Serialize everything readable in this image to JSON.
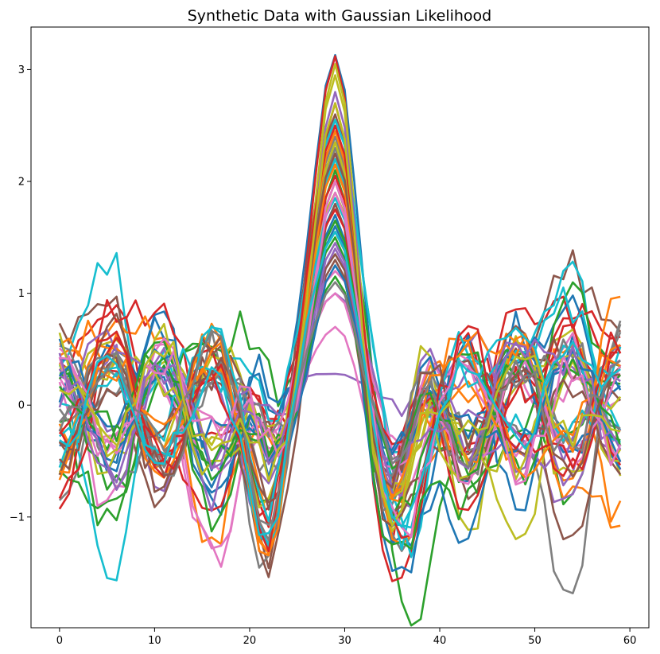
{
  "chart_data": {
    "type": "line",
    "title": "Synthetic Data with Gaussian Likelihood",
    "xlabel": "",
    "ylabel": "",
    "xlim": [
      -3,
      62
    ],
    "ylim": [
      -1.99,
      3.38
    ],
    "x_ticks": [
      0,
      10,
      20,
      30,
      40,
      50,
      60
    ],
    "x_tick_labels": [
      "0",
      "10",
      "20",
      "30",
      "40",
      "50",
      "60"
    ],
    "y_ticks": [
      -1,
      0,
      1,
      2,
      3
    ],
    "y_tick_labels": [
      "−1",
      "0",
      "1",
      "2",
      "3"
    ],
    "grid": false,
    "legend": "none",
    "n_points": 60,
    "x_values": "0..59",
    "series_count": 50,
    "palette": [
      "#1f77b4",
      "#ff7f0e",
      "#2ca02c",
      "#d62728",
      "#9467bd",
      "#8c564b",
      "#e377c2",
      "#7f7f7f",
      "#bcbd22",
      "#17becf"
    ],
    "signal": {
      "shape": "gaussian bump",
      "center_x": 29,
      "peak_amplitude_range": [
        0.3,
        3.1
      ],
      "baseline_mean": 0
    },
    "series": [
      {
        "peak": 3.13,
        "baseline": [
          0.2,
          -0.5,
          0.8,
          -0.9,
          0.4,
          0.6,
          -0.3,
          0.5,
          -0.6,
          0.7,
          -0.4,
          0.2
        ]
      },
      {
        "peak": 2.25,
        "baseline": [
          0.5,
          0.3,
          -0.6,
          0.7,
          -0.2,
          0.6,
          -0.9,
          0.4,
          0.3,
          -0.5,
          0.6,
          -1.0
        ]
      },
      {
        "peak": 2.2,
        "baseline": [
          -0.2,
          -1.1,
          0.3,
          0.5,
          1.15,
          -0.4,
          0.1,
          -1.5,
          -0.2,
          0.4,
          -0.8,
          0.3
        ]
      },
      {
        "peak": 3.12,
        "baseline": [
          0.4,
          0.8,
          0.9,
          -0.3,
          0.7,
          0.2,
          -1.7,
          0.6,
          -0.4,
          0.9,
          0.8,
          0.5
        ]
      },
      {
        "peak": 0.28,
        "baseline": [
          -0.4,
          0.4,
          -0.6,
          0.2,
          -0.3,
          0.5,
          0.2,
          0.5,
          0.2,
          -0.5,
          0.3,
          -0.6
        ]
      },
      {
        "peak": 2.6,
        "baseline": [
          0.6,
          1.0,
          -0.8,
          0.4,
          -0.6,
          0.9,
          -1.2,
          0.5,
          -0.7,
          0.3,
          1.25,
          0.6
        ]
      },
      {
        "peak": 0.7,
        "baseline": [
          0.1,
          -0.4,
          0.2,
          -1.4,
          0.3,
          0.2,
          -0.5,
          0.4,
          -0.8,
          0.3,
          -0.4,
          0.2
        ]
      },
      {
        "peak": 2.4,
        "baseline": [
          -0.8,
          0.3,
          -0.5,
          0.5,
          -0.7,
          0.2,
          -0.9,
          -0.6,
          0.4,
          -0.3,
          -1.6,
          0.6
        ]
      },
      {
        "peak": 3.05,
        "baseline": [
          0.2,
          0.6,
          -0.3,
          0.4,
          0.5,
          -0.6,
          -1.2,
          1.05,
          -1.1,
          0.3,
          0.6,
          -0.5
        ]
      },
      {
        "peak": 2.55,
        "baseline": [
          0.3,
          1.25,
          -0.6,
          0.2,
          0.8,
          0.5,
          0.3,
          0.4,
          -0.5,
          0.5,
          1.2,
          -0.2
        ]
      },
      {
        "peak": 1.8,
        "baseline": [
          -0.3,
          0.5,
          0.1,
          -0.7,
          1.0,
          -0.2,
          -1.3,
          -0.5,
          -1.2,
          0.4,
          0.9,
          -0.4
        ]
      },
      {
        "peak": 2.0,
        "baseline": [
          0.5,
          0.7,
          0.6,
          -1.3,
          0.5,
          -0.4,
          -1.0,
          -0.6,
          0.2,
          0.7,
          -0.8,
          -1.0
        ]
      },
      {
        "peak": 1.5,
        "baseline": [
          -0.6,
          -1.0,
          0.2,
          0.5,
          -0.3,
          0.3,
          -1.1,
          0.2,
          -0.7,
          -0.2,
          1.0,
          0.3
        ]
      },
      {
        "peak": 2.7,
        "baseline": [
          -0.8,
          0.9,
          -0.4,
          -0.9,
          0.8,
          -0.5,
          -1.7,
          -0.4,
          0.6,
          -0.4,
          0.9,
          0.5
        ]
      },
      {
        "peak": 1.0,
        "baseline": [
          0.2,
          -0.3,
          0.3,
          0.2,
          -0.6,
          0.4,
          0.5,
          -0.3,
          0.7,
          -0.4,
          -0.8,
          0.4
        ]
      },
      {
        "peak": 1.3,
        "baseline": [
          -0.4,
          0.3,
          -0.8,
          0.3,
          0.5,
          -0.5,
          -0.9,
          0.4,
          -0.6,
          0.5,
          -1.3,
          0.5
        ]
      },
      {
        "peak": 1.2,
        "baseline": [
          0.1,
          -0.9,
          0.5,
          -1.4,
          0.2,
          0.3,
          0.3,
          -0.2,
          0.5,
          -0.6,
          0.2,
          -0.4
        ]
      },
      {
        "peak": 2.0,
        "baseline": [
          0.7,
          -0.6,
          -0.4,
          0.3,
          0.2,
          -0.7,
          -1.2,
          0.4,
          -0.5,
          0.3,
          -0.4,
          0.6
        ]
      },
      {
        "peak": 2.95,
        "baseline": [
          -0.5,
          0.4,
          0.5,
          -0.2,
          0.6,
          -0.3,
          -1.0,
          0.2,
          -0.3,
          -1.15,
          0.3,
          -0.5
        ]
      },
      {
        "peak": 2.55,
        "baseline": [
          0.1,
          -1.5,
          0.4,
          0.3,
          -0.5,
          0.5,
          0.5,
          -0.6,
          0.3,
          0.4,
          0.9,
          -0.3
        ]
      },
      {
        "peak": 1.7,
        "baseline": [
          0.3,
          -0.5,
          0.7,
          -0.9,
          0.9,
          -0.3,
          -1.4,
          -0.8,
          0.5,
          -0.9,
          0.5,
          -0.6
        ]
      },
      {
        "peak": 2.15,
        "baseline": [
          -0.3,
          0.6,
          -0.7,
          0.6,
          -0.5,
          0.4,
          -0.8,
          0.3,
          0.5,
          0.6,
          -0.7,
          1.0
        ]
      },
      {
        "peak": 2.1,
        "baseline": [
          0.4,
          -0.8,
          0.3,
          -1.0,
          0.5,
          -0.8,
          -1.4,
          -0.5,
          -0.9,
          0.4,
          -0.4,
          0.3
        ]
      },
      {
        "peak": 2.05,
        "baseline": [
          -0.7,
          0.2,
          -0.6,
          0.4,
          -0.3,
          0.2,
          -0.9,
          0.7,
          -1.0,
          0.2,
          0.7,
          -0.4
        ]
      },
      {
        "peak": 1.4,
        "baseline": [
          0.1,
          0.6,
          0.4,
          -0.8,
          0.7,
          -0.6,
          -0.7,
          0.3,
          -0.4,
          -0.3,
          -0.6,
          0.4
        ]
      },
      {
        "peak": 1.8,
        "baseline": [
          -0.5,
          0.8,
          -0.3,
          0.6,
          -0.8,
          -0.5,
          -1.1,
          -0.3,
          -0.6,
          0.6,
          0.4,
          0.2
        ]
      },
      {
        "peak": 1.0,
        "baseline": [
          0.5,
          -0.4,
          0.2,
          -0.6,
          0.3,
          0.5,
          -0.2,
          0.4,
          0.3,
          -0.5,
          0.6,
          -0.3
        ]
      },
      {
        "peak": 2.3,
        "baseline": [
          -0.2,
          0.4,
          -0.5,
          0.2,
          0.6,
          -0.4,
          -0.8,
          0.5,
          -0.6,
          0.2,
          -0.3,
          0.6
        ]
      },
      {
        "peak": 1.9,
        "baseline": [
          0.3,
          -0.6,
          0.6,
          -0.3,
          -0.2,
          0.5,
          -0.6,
          0.2,
          -0.8,
          0.5,
          -0.7,
          0.2
        ]
      },
      {
        "peak": 2.2,
        "baseline": [
          -0.4,
          0.3,
          -0.2,
          0.7,
          -0.6,
          0.3,
          -0.5,
          -0.4,
          0.6,
          -0.2,
          0.4,
          -0.5
        ]
      },
      {
        "peak": 1.6,
        "baseline": [
          0.6,
          -0.2,
          0.4,
          -0.5,
          0.3,
          -0.6,
          -0.4,
          0.6,
          -0.3,
          0.4,
          -0.5,
          0.3
        ]
      },
      {
        "peak": 2.45,
        "baseline": [
          -0.6,
          0.5,
          -0.4,
          0.3,
          -0.5,
          0.4,
          -1.0,
          0.3,
          -0.5,
          0.6,
          -0.3,
          0.4
        ]
      },
      {
        "peak": 1.15,
        "baseline": [
          0.2,
          -0.3,
          0.5,
          -0.6,
          0.2,
          -0.2,
          -0.6,
          -0.3,
          0.4,
          -0.6,
          0.3,
          -0.2
        ]
      },
      {
        "peak": 1.75,
        "baseline": [
          -0.3,
          0.6,
          -0.5,
          0.4,
          -0.4,
          0.6,
          -0.3,
          0.5,
          -0.4,
          0.2,
          -0.6,
          0.5
        ]
      },
      {
        "peak": 2.8,
        "baseline": [
          0.4,
          -0.7,
          0.3,
          -0.4,
          0.6,
          -0.5,
          -0.9,
          0.4,
          -0.2,
          0.5,
          -0.4,
          0.3
        ]
      },
      {
        "peak": 1.35,
        "baseline": [
          -0.5,
          0.2,
          -0.3,
          0.5,
          -0.2,
          0.3,
          -0.7,
          -0.2,
          0.5,
          -0.4,
          0.2,
          -0.6
        ]
      },
      {
        "peak": 2.0,
        "baseline": [
          0.3,
          -0.4,
          0.6,
          -0.2,
          0.4,
          -0.6,
          -0.5,
          0.3,
          -0.6,
          0.4,
          -0.5,
          0.2
        ]
      },
      {
        "peak": 1.55,
        "baseline": [
          -0.2,
          0.5,
          -0.6,
          0.3,
          -0.5,
          0.2,
          -0.4,
          0.6,
          -0.3,
          0.3,
          0.5,
          -0.3
        ]
      },
      {
        "peak": 2.35,
        "baseline": [
          0.5,
          -0.3,
          0.2,
          -0.6,
          0.5,
          -0.3,
          -1.1,
          0.2,
          -0.4,
          -0.5,
          0.4,
          -0.5
        ]
      },
      {
        "peak": 1.85,
        "baseline": [
          -0.4,
          0.3,
          -0.5,
          0.6,
          -0.3,
          0.5,
          -0.6,
          -0.5,
          0.3,
          0.6,
          -0.3,
          0.4
        ]
      },
      {
        "peak": 1.25,
        "baseline": [
          0.3,
          -0.5,
          0.4,
          -0.3,
          0.2,
          -0.5,
          -0.3,
          0.4,
          -0.2,
          -0.3,
          0.5,
          -0.4
        ]
      },
      {
        "peak": 2.15,
        "baseline": [
          -0.6,
          0.4,
          -0.2,
          0.5,
          -0.6,
          0.3,
          -0.8,
          0.3,
          0.4,
          -0.5,
          -0.2,
          0.5
        ]
      },
      {
        "peak": 1.65,
        "baseline": [
          0.2,
          -0.2,
          0.5,
          -0.5,
          0.4,
          -0.4,
          -0.5,
          0.5,
          -0.5,
          0.4,
          0.3,
          -0.3
        ]
      },
      {
        "peak": 2.5,
        "baseline": [
          -0.3,
          0.6,
          -0.4,
          0.2,
          -0.4,
          0.6,
          -0.7,
          -0.3,
          0.6,
          -0.3,
          -0.5,
          0.6
        ]
      },
      {
        "peak": 1.45,
        "baseline": [
          0.4,
          -0.6,
          0.3,
          -0.4,
          0.3,
          -0.3,
          -0.4,
          0.2,
          -0.4,
          0.5,
          0.4,
          -0.4
        ]
      },
      {
        "peak": 2.25,
        "baseline": [
          -0.5,
          0.3,
          -0.6,
          0.4,
          -0.2,
          0.4,
          -0.9,
          0.6,
          -0.2,
          0.3,
          -0.6,
          0.3
        ]
      },
      {
        "peak": 1.9,
        "baseline": [
          0.5,
          -0.4,
          0.4,
          -0.2,
          0.5,
          -0.6,
          -0.6,
          -0.4,
          0.5,
          -0.6,
          0.3,
          -0.5
        ]
      },
      {
        "peak": 1.1,
        "baseline": [
          -0.2,
          0.4,
          -0.3,
          0.6,
          -0.5,
          0.2,
          -0.2,
          0.4,
          -0.6,
          0.3,
          -0.4,
          0.4
        ]
      },
      {
        "peak": 2.7,
        "baseline": [
          0.3,
          -0.3,
          0.6,
          -0.5,
          0.3,
          -0.4,
          -1.2,
          0.3,
          -0.3,
          0.5,
          -0.2,
          -0.3
        ]
      },
      {
        "peak": 1.55,
        "baseline": [
          -0.4,
          0.5,
          -0.5,
          0.3,
          -0.6,
          0.5,
          -0.5,
          -0.5,
          0.4,
          -0.4,
          0.6,
          0.2
        ]
      }
    ]
  }
}
